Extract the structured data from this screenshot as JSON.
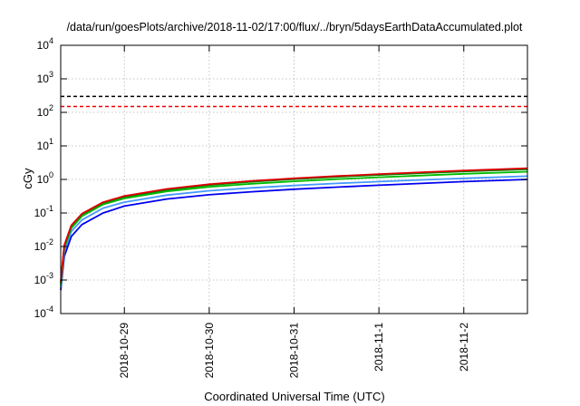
{
  "chart_data": {
    "type": "line",
    "title": "/data/run/goesPlots/archive/2018-11-02/17:00/flux/../bryn/5daysEarthDataAccumulated.plot",
    "xlabel": "Coordinated Universal Time (UTC)",
    "ylabel": "cGy",
    "yscale": "log",
    "xlim": [
      "2018-10-28T06:00",
      "2018-11-02T18:00"
    ],
    "ylim": [
      0.0001,
      10000
    ],
    "x_ticks": [
      {
        "at": "2018-10-29T00:00",
        "label": "2018-10-29"
      },
      {
        "at": "2018-10-30T00:00",
        "label": "2018-10-30"
      },
      {
        "at": "2018-10-31T00:00",
        "label": "2018-10-31"
      },
      {
        "at": "2018-11-01T00:00",
        "label": "2018-11-1"
      },
      {
        "at": "2018-11-02T00:00",
        "label": "2018-11-2"
      }
    ],
    "y_ticks": [
      {
        "base": "10",
        "exp": "-4",
        "value": 0.0001
      },
      {
        "base": "10",
        "exp": "-3",
        "value": 0.001
      },
      {
        "base": "10",
        "exp": "-2",
        "value": 0.01
      },
      {
        "base": "10",
        "exp": "-1",
        "value": 0.1
      },
      {
        "base": "10",
        "exp": "0",
        "value": 1
      },
      {
        "base": "10",
        "exp": "1",
        "value": 10
      },
      {
        "base": "10",
        "exp": "2",
        "value": 100
      },
      {
        "base": "10",
        "exp": "3",
        "value": 1000
      },
      {
        "base": "10",
        "exp": "4",
        "value": 10000
      }
    ],
    "grid": true,
    "series": [
      {
        "color": "#0000ee",
        "x": [
          "2018-10-28T06:00",
          "2018-10-28T07:00",
          "2018-10-28T09:00",
          "2018-10-28T12:00",
          "2018-10-28T18:00",
          "2018-10-29T00:00",
          "2018-10-29T12:00",
          "2018-10-30T00:00",
          "2018-10-30T12:00",
          "2018-10-31T00:00",
          "2018-10-31T12:00",
          "2018-11-01T00:00",
          "2018-11-01T12:00",
          "2018-11-02T00:00",
          "2018-11-02T18:00"
        ],
        "y": [
          0.0005,
          0.005,
          0.02,
          0.045,
          0.1,
          0.16,
          0.26,
          0.35,
          0.43,
          0.51,
          0.59,
          0.67,
          0.76,
          0.86,
          1.0
        ]
      },
      {
        "color": "#4499ff",
        "x": [
          "2018-10-28T06:00",
          "2018-10-28T07:00",
          "2018-10-28T09:00",
          "2018-10-28T12:00",
          "2018-10-28T18:00",
          "2018-10-29T00:00",
          "2018-10-29T12:00",
          "2018-10-30T00:00",
          "2018-10-30T12:00",
          "2018-10-31T00:00",
          "2018-10-31T12:00",
          "2018-11-01T00:00",
          "2018-11-01T12:00",
          "2018-11-02T00:00",
          "2018-11-02T18:00"
        ],
        "y": [
          0.0006,
          0.007,
          0.028,
          0.062,
          0.14,
          0.21,
          0.34,
          0.46,
          0.56,
          0.66,
          0.76,
          0.86,
          0.97,
          1.08,
          1.25
        ]
      },
      {
        "color": "#00bb00",
        "x": [
          "2018-10-28T06:00",
          "2018-10-28T07:00",
          "2018-10-28T09:00",
          "2018-10-28T12:00",
          "2018-10-28T18:00",
          "2018-10-29T00:00",
          "2018-10-29T12:00",
          "2018-10-30T00:00",
          "2018-10-30T12:00",
          "2018-10-31T00:00",
          "2018-10-31T12:00",
          "2018-11-01T00:00",
          "2018-11-01T12:00",
          "2018-11-02T00:00",
          "2018-11-02T18:00"
        ],
        "y": [
          0.0007,
          0.009,
          0.035,
          0.08,
          0.18,
          0.27,
          0.44,
          0.6,
          0.74,
          0.88,
          1.02,
          1.16,
          1.31,
          1.47,
          1.7
        ]
      },
      {
        "color": "#008800",
        "x": [
          "2018-10-28T06:00",
          "2018-10-28T07:00",
          "2018-10-28T09:00",
          "2018-10-28T12:00",
          "2018-10-28T18:00",
          "2018-10-29T00:00",
          "2018-10-29T12:00",
          "2018-10-30T00:00",
          "2018-10-30T12:00",
          "2018-10-31T00:00",
          "2018-10-31T12:00",
          "2018-11-01T00:00",
          "2018-11-01T12:00",
          "2018-11-02T00:00",
          "2018-11-02T18:00"
        ],
        "y": [
          0.0008,
          0.01,
          0.04,
          0.09,
          0.2,
          0.3,
          0.49,
          0.68,
          0.85,
          1.02,
          1.19,
          1.36,
          1.54,
          1.73,
          2.0
        ]
      },
      {
        "color": "#dd0000",
        "x": [
          "2018-10-28T06:00",
          "2018-10-28T07:00",
          "2018-10-28T09:00",
          "2018-10-28T12:00",
          "2018-10-28T18:00",
          "2018-10-29T00:00",
          "2018-10-29T12:00",
          "2018-10-30T00:00",
          "2018-10-30T12:00",
          "2018-10-31T00:00",
          "2018-10-31T12:00",
          "2018-11-01T00:00",
          "2018-11-01T12:00",
          "2018-11-02T00:00",
          "2018-11-02T18:00"
        ],
        "y": [
          0.0009,
          0.011,
          0.043,
          0.095,
          0.21,
          0.32,
          0.52,
          0.72,
          0.9,
          1.08,
          1.26,
          1.44,
          1.63,
          1.84,
          2.15
        ]
      }
    ],
    "reference_lines": [
      {
        "y": 300,
        "color": "#000000",
        "dash": true
      },
      {
        "y": 150,
        "color": "#ee0000",
        "dash": true
      }
    ]
  }
}
